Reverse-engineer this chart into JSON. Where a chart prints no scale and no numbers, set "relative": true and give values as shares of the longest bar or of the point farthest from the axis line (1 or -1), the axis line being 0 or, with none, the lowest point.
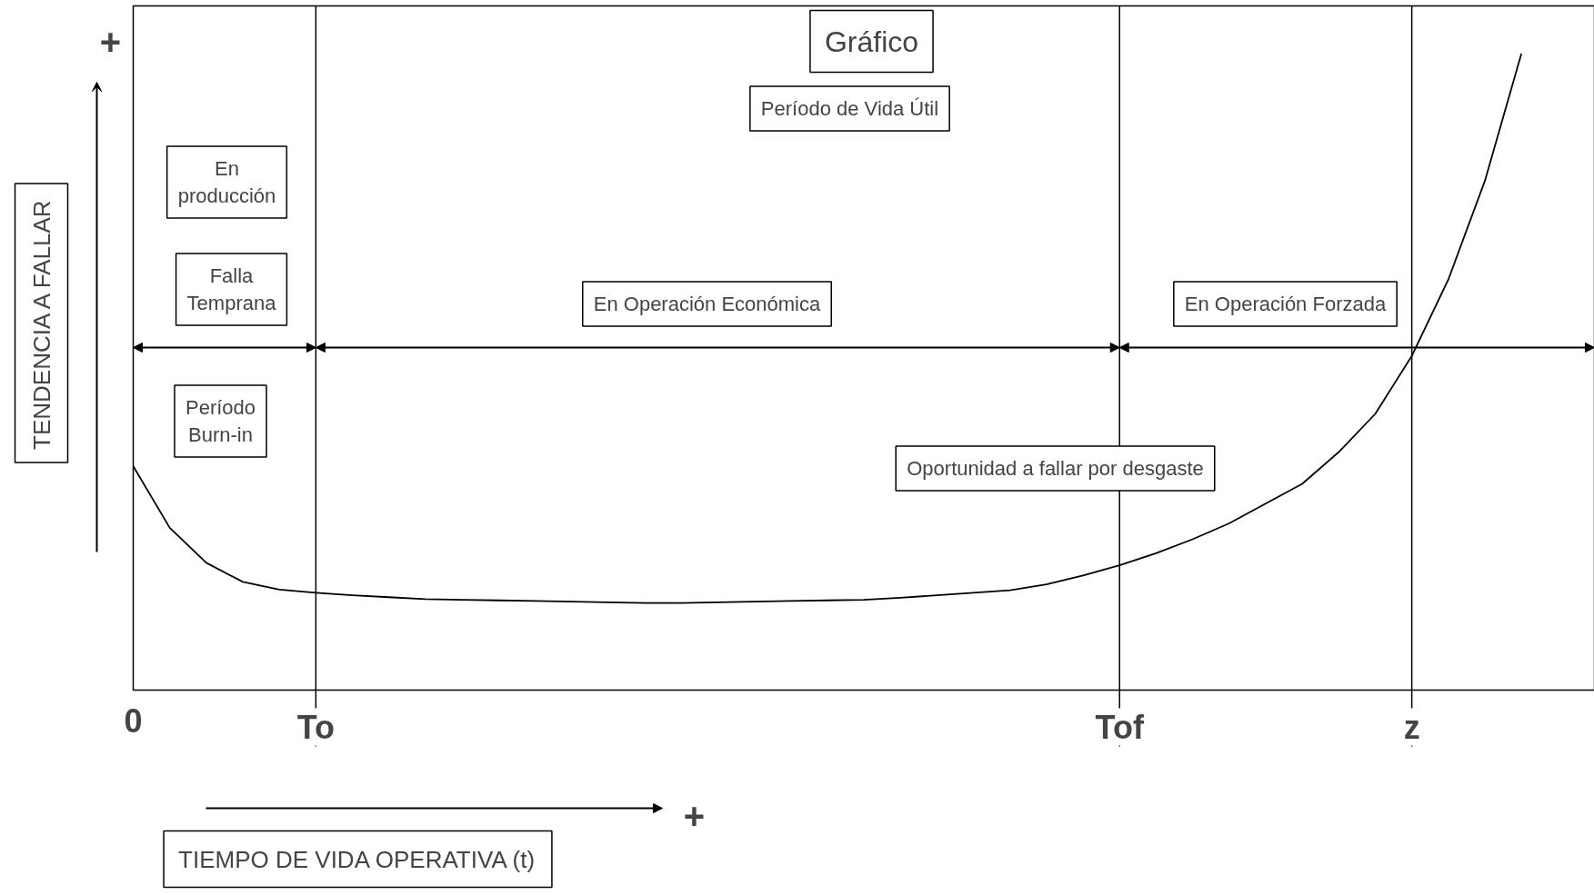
{
  "chart_data": {
    "type": "line",
    "relative": true,
    "title": "Gráfico",
    "subtitle": "Período de Vida Útil",
    "xlabel": "TIEMPO DE VIDA OPERATIVA (t)",
    "ylabel": "TENDENCIA A FALLAR",
    "categories": [
      "0",
      null,
      null,
      null,
      null,
      "To",
      null,
      null,
      null,
      null,
      null,
      null,
      null,
      null,
      null,
      null,
      null,
      null,
      null,
      null,
      null,
      null,
      null,
      null,
      null,
      null,
      null,
      "Tof",
      null,
      null,
      null,
      null,
      null,
      null,
      null,
      "z",
      null,
      null,
      null,
      null,
      null
    ],
    "series": [
      {
        "color": "#000000",
        "values": [
          0.352,
          0.255,
          0.2,
          0.17,
          0.158,
          0.153,
          0.149,
          0.146,
          0.143,
          0.142,
          0.141,
          0.14,
          0.139,
          0.138,
          0.137,
          0.137,
          0.138,
          0.139,
          0.14,
          0.141,
          0.142,
          0.145,
          0.149,
          0.153,
          0.157,
          0.166,
          0.18,
          0.196,
          0.215,
          0.237,
          0.262,
          0.293,
          0.324,
          0.374,
          0.434,
          0.525,
          0.645,
          0.8,
          1.0,
          null,
          null
        ]
      }
    ],
    "tick_labels": "x",
    "ref_lines": [
      {
        "axis": "x",
        "value": "To",
        "label": null,
        "color": "#000000"
      },
      {
        "axis": "x",
        "value": "Tof",
        "label": null,
        "color": "#000000"
      },
      {
        "axis": "x",
        "value": "z",
        "label": null,
        "color": "#000000"
      }
    ],
    "annotations": [
      "En\nproducción",
      "Falla\nTemprana",
      "Período\nBurn-in",
      "En Operación Económica",
      "En Operación Forzada",
      "Oportunidad a fallar por desgaste",
      "+",
      "+"
    ],
    "marker": "none",
    "line_style": "solid"
  }
}
